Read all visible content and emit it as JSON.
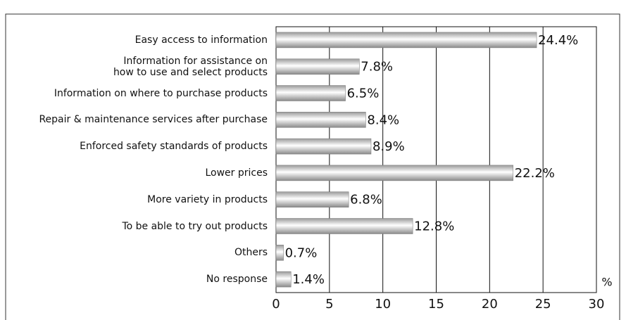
{
  "chart_data": {
    "type": "barh",
    "categories": [
      "Easy access to information",
      "Information for assistance on\nhow to use and select products",
      "Information on where to purchase products",
      "Repair & maintenance services after purchase",
      "Enforced safety standards of products",
      "Lower prices",
      "More variety in products",
      "To be able to try out products",
      "Others",
      "No response"
    ],
    "values": [
      24.4,
      7.8,
      6.5,
      8.4,
      8.9,
      22.2,
      6.8,
      12.8,
      0.7,
      1.4
    ],
    "value_labels": [
      "24.4%",
      "7.8%",
      "6.5%",
      "8.4%",
      "8.9%",
      "22.2%",
      "6.8%",
      "12.8%",
      "0.7%",
      "1.4%"
    ],
    "xlabel": "%",
    "xlim": [
      0,
      30
    ],
    "xticks": [
      0,
      5,
      10,
      15,
      20,
      25,
      30
    ],
    "grid": true
  }
}
